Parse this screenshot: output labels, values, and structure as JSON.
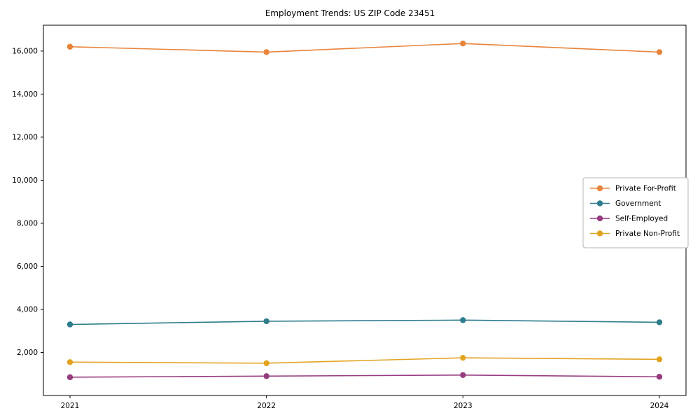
{
  "figure": {
    "title": "Employment Trends: US ZIP Code 23451"
  },
  "chart_data": {
    "type": "line",
    "title": "Employment Trends: US ZIP Code 23451",
    "xlabel": "",
    "ylabel": "",
    "categories": [
      "2021",
      "2022",
      "2023",
      "2024"
    ],
    "ylim": [
      0,
      17200
    ],
    "ytick_interval": 2000,
    "yticks": [
      2000,
      4000,
      6000,
      8000,
      10000,
      12000,
      14000,
      16000
    ],
    "ytick_labels": [
      "2,000",
      "4,000",
      "6,000",
      "8,000",
      "10,000",
      "12,000",
      "14,000",
      "16,000"
    ],
    "grid": false,
    "legend_position": "middle-right",
    "series": [
      {
        "name": "Private For-Profit",
        "color": "#e8833a",
        "values": [
          16200,
          15950,
          16350,
          15950
        ]
      },
      {
        "name": "Government",
        "color": "#2e7d8c",
        "values": [
          3300,
          3450,
          3500,
          3400
        ]
      },
      {
        "name": "Self-Employed",
        "color": "#963c7e",
        "values": [
          850,
          900,
          950,
          870
        ]
      },
      {
        "name": "Private Non-Profit",
        "color": "#e2a321",
        "values": [
          1550,
          1500,
          1750,
          1680
        ]
      }
    ]
  }
}
